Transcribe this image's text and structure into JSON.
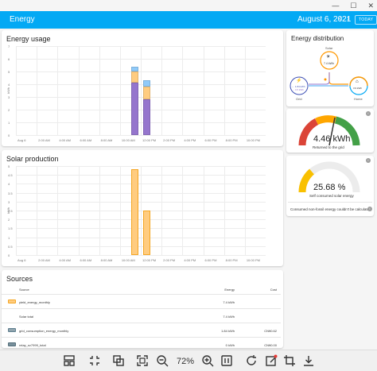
{
  "window": {
    "minimize": "—",
    "maximize": "☐",
    "close": "✕"
  },
  "header": {
    "title": "Energy",
    "date": "August 6, 2021",
    "prev": "‹",
    "next": "›",
    "today": "TODAY"
  },
  "energy_usage": {
    "title": "Energy usage",
    "ylabel": "kWh",
    "yticks": [
      "0",
      "1",
      "2",
      "3",
      "4",
      "5",
      "6",
      "7"
    ],
    "xticks": [
      "Aug 6",
      "2:00 AM",
      "4:00 AM",
      "6:00 AM",
      "8:00 AM",
      "10:00 AM",
      "12:00 PM",
      "2:00 PM",
      "4:00 PM",
      "6:00 PM",
      "8:00 PM",
      "10:00 PM"
    ],
    "colors": {
      "grid": "#9575cd",
      "solar": "#ffcc80",
      "battery": "#90caf9"
    }
  },
  "solar_production": {
    "title": "Solar production",
    "ylabel": "kWh",
    "yticks": [
      "0",
      "0.5",
      "1",
      "1.5",
      "2",
      "2.5",
      "3",
      "3.5",
      "4",
      "4.5",
      "5"
    ],
    "xticks": [
      "Aug 6",
      "2:00 AM",
      "4:00 AM",
      "6:00 AM",
      "8:00 AM",
      "10:00 AM",
      "12:00 PM",
      "2:00 PM",
      "4:00 PM",
      "6:00 PM",
      "8:00 PM",
      "10:00 PM"
    ],
    "color": "#ffcc80"
  },
  "chart_data": [
    {
      "type": "bar",
      "title": "Energy usage",
      "ylabel": "kWh",
      "categories": [
        "11:00 AM",
        "12:00 PM"
      ],
      "series": [
        {
          "values": [
            4.1,
            2.8
          ],
          "color": "#9575cd"
        },
        {
          "values": [
            0.9,
            1.0
          ],
          "color": "#ffcc80"
        },
        {
          "values": [
            0.4,
            0.5
          ],
          "color": "#90caf9"
        }
      ],
      "ylim": [
        0,
        7
      ]
    },
    {
      "type": "bar",
      "title": "Solar production",
      "ylabel": "kWh",
      "categories": [
        "11:00 AM",
        "12:00 PM"
      ],
      "values": [
        4.8,
        2.5
      ],
      "ylim": [
        0,
        5
      ]
    }
  ],
  "distribution": {
    "title": "Energy distribution",
    "solar_label": "Solar",
    "solar_value": "7.4 kWh",
    "grid_label": "Grid",
    "grid_in": "← 1.84 kWh",
    "grid_out": "→ 4.5 kWh",
    "home_label": "Home",
    "home_value": "3.9 kWh"
  },
  "gauge1": {
    "value": "4.46 kWh",
    "caption": "Returned to the grid",
    "info": "i"
  },
  "gauge2": {
    "value": "25.68 %",
    "caption": "Self consumed solar energy",
    "note": "Consumed non-fossil energy couldn't be calculated",
    "info": "i"
  },
  "sources": {
    "title": "Sources",
    "headers": {
      "source": "Source",
      "energy": "Energy",
      "cost": "Cost"
    },
    "rows": [
      {
        "name": "yield_energy_monthly",
        "energy": "7.4 kWh",
        "cost": "",
        "color": "#ffcc80"
      },
      {
        "name": "Solar total",
        "energy": "7.4 kWh",
        "cost": "",
        "color": ""
      },
      {
        "name": "grid_consumption_energy_monthly",
        "energy": "1.84 kWh",
        "cost": "CN¥0.62",
        "color": "#90a4ae"
      },
      {
        "name": "relay_sv7999_total",
        "energy": "0 kWh",
        "cost": "CN¥0.00",
        "color": "#78909c"
      }
    ]
  },
  "toolbar": {
    "zoom": "72%"
  }
}
